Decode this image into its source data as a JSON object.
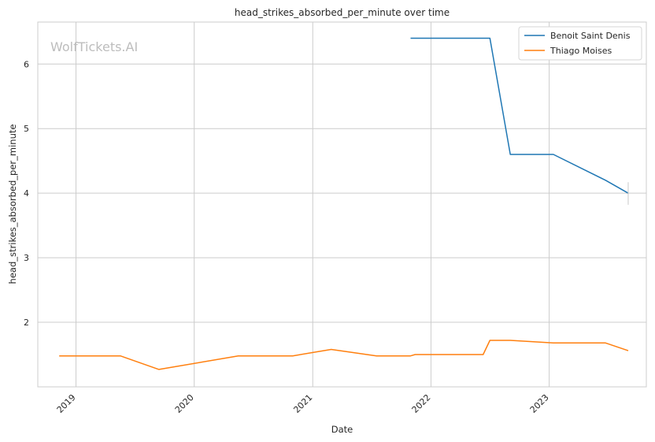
{
  "chart_data": {
    "type": "line",
    "title": "head_strikes_absorbed_per_minute over time",
    "xlabel": "Date",
    "ylabel": "head_strikes_absorbed_per_minute",
    "watermark": "WolfTickets.AI",
    "x_ticks": [
      "2019",
      "2020",
      "2021",
      "2022",
      "2023"
    ],
    "y_ticks": [
      2,
      3,
      4,
      5,
      6
    ],
    "xlim": [
      "2018-09-05",
      "2023-10-28"
    ],
    "ylim": [
      1.0,
      6.65
    ],
    "grid": true,
    "legend_position": "top-right",
    "series": [
      {
        "name": "Benoit Saint Denis",
        "color": "#1f77b4",
        "points": [
          {
            "x": "2021-10-30",
            "y": 6.4
          },
          {
            "x": "2022-07-02",
            "y": 6.4
          },
          {
            "x": "2022-09-03",
            "y": 4.6
          },
          {
            "x": "2023-01-14",
            "y": 4.6
          },
          {
            "x": "2023-06-24",
            "y": 4.2
          },
          {
            "x": "2023-09-02",
            "y": 4.0
          }
        ],
        "error_bar": {
          "x": "2023-09-02",
          "low": 3.82,
          "high": 4.17
        }
      },
      {
        "name": "Thiago Moises",
        "color": "#ff7f0e",
        "points": [
          {
            "x": "2018-11-10",
            "y": 1.48
          },
          {
            "x": "2019-05-18",
            "y": 1.48
          },
          {
            "x": "2019-09-14",
            "y": 1.27
          },
          {
            "x": "2020-05-16",
            "y": 1.48
          },
          {
            "x": "2020-10-31",
            "y": 1.48
          },
          {
            "x": "2021-02-27",
            "y": 1.58
          },
          {
            "x": "2021-07-17",
            "y": 1.48
          },
          {
            "x": "2021-10-30",
            "y": 1.48
          },
          {
            "x": "2021-11-13",
            "y": 1.5
          },
          {
            "x": "2022-06-11",
            "y": 1.5
          },
          {
            "x": "2022-07-02",
            "y": 1.72
          },
          {
            "x": "2022-09-03",
            "y": 1.72
          },
          {
            "x": "2023-01-14",
            "y": 1.68
          },
          {
            "x": "2023-06-24",
            "y": 1.68
          },
          {
            "x": "2023-09-02",
            "y": 1.56
          }
        ]
      }
    ]
  }
}
